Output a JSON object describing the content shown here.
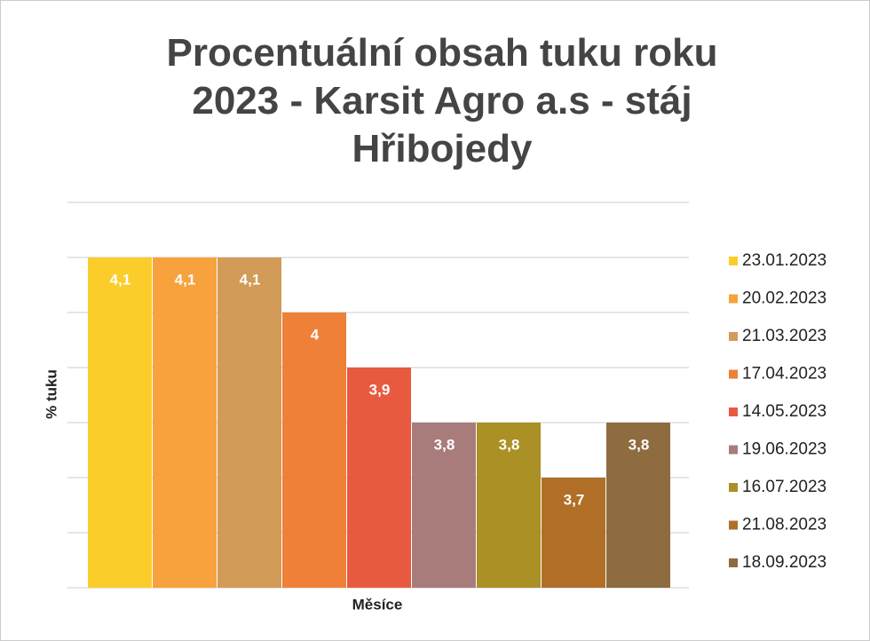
{
  "chart_data": {
    "type": "bar",
    "title": "Procentuální obsah tuku roku 2023 - Karsit Agro a.s - stáj Hřibojedy",
    "x_label": "Měsíce",
    "y_label": "% tuku",
    "categories": [
      null
    ],
    "series": [
      {
        "name": "23.01.2023",
        "color": "#fbcd2a",
        "values": [
          4.1
        ],
        "value_labels": [
          "4,1"
        ]
      },
      {
        "name": "20.02.2023",
        "color": "#f7a23c",
        "values": [
          4.1
        ],
        "value_labels": [
          "4,1"
        ]
      },
      {
        "name": "21.03.2023",
        "color": "#d29b57",
        "values": [
          4.1
        ],
        "value_labels": [
          "4,1"
        ]
      },
      {
        "name": "17.04.2023",
        "color": "#ee8038",
        "values": [
          4.0
        ],
        "value_labels": [
          "4"
        ]
      },
      {
        "name": "14.05.2023",
        "color": "#e85a40",
        "values": [
          3.9
        ],
        "value_labels": [
          "3,9"
        ]
      },
      {
        "name": "19.06.2023",
        "color": "#a97c7c",
        "values": [
          3.8
        ],
        "value_labels": [
          "3,8"
        ]
      },
      {
        "name": "16.07.2023",
        "color": "#aa9025",
        "values": [
          3.8
        ],
        "value_labels": [
          "3,8"
        ]
      },
      {
        "name": "21.08.2023",
        "color": "#b06e27",
        "values": [
          3.7
        ],
        "value_labels": [
          "3,7"
        ]
      },
      {
        "name": "18.09.2023",
        "color": "#8f6b40",
        "values": [
          3.8
        ],
        "value_labels": [
          "3,8"
        ]
      }
    ],
    "ylim": [
      3.5,
      4.2
    ],
    "yticks": [
      3.5,
      3.6,
      3.7,
      3.8,
      3.9,
      4.0,
      4.1,
      4.2
    ],
    "grid": true,
    "legend": "right"
  }
}
